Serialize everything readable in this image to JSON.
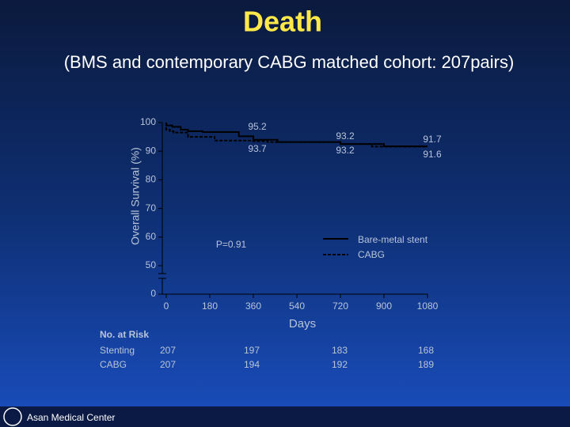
{
  "title": "Death",
  "subtitle": "(BMS and contemporary CABG matched cohort: 207pairs)",
  "footer": "Asan Medical Center",
  "chart_data": {
    "type": "line",
    "step": true,
    "x_label": "Days",
    "y_label": "Overall Survival (%)",
    "xlim": [
      0,
      1080
    ],
    "xticks": [
      0,
      180,
      360,
      540,
      720,
      900,
      1080
    ],
    "ylim": [
      0,
      100
    ],
    "y_break": [
      0,
      50
    ],
    "yticks": [
      0,
      50,
      60,
      70,
      80,
      90,
      100
    ],
    "legend": "right",
    "series": [
      {
        "name": "Bare-metal stent",
        "color": "#000000",
        "dash": false,
        "x": [
          0,
          25,
          60,
          90,
          150,
          300,
          360,
          460,
          560,
          720,
          900,
          1080
        ],
        "values": [
          100,
          99,
          98.5,
          97.5,
          97,
          96.7,
          95.2,
          94,
          93.2,
          93.2,
          92.5,
          91.7
        ]
      },
      {
        "name": "CABG",
        "color": "#000000",
        "dash": true,
        "x": [
          0,
          15,
          30,
          90,
          200,
          360,
          420,
          540,
          720,
          850,
          1080
        ],
        "values": [
          100,
          97.5,
          97,
          96.5,
          95,
          93.7,
          93.5,
          93.2,
          93.2,
          92.5,
          91.6
        ]
      }
    ],
    "annotations": [
      "95.2",
      "93.7",
      "93.2",
      "93.2",
      "91.7",
      "91.6",
      "P=0.91"
    ]
  },
  "risk_table": {
    "title": "No. at Risk",
    "rows": [
      {
        "label": "Stenting",
        "values": [
          "207",
          "197",
          "183",
          "168"
        ]
      },
      {
        "label": "CABG",
        "values": [
          "207",
          "194",
          "192",
          "189"
        ]
      }
    ]
  }
}
